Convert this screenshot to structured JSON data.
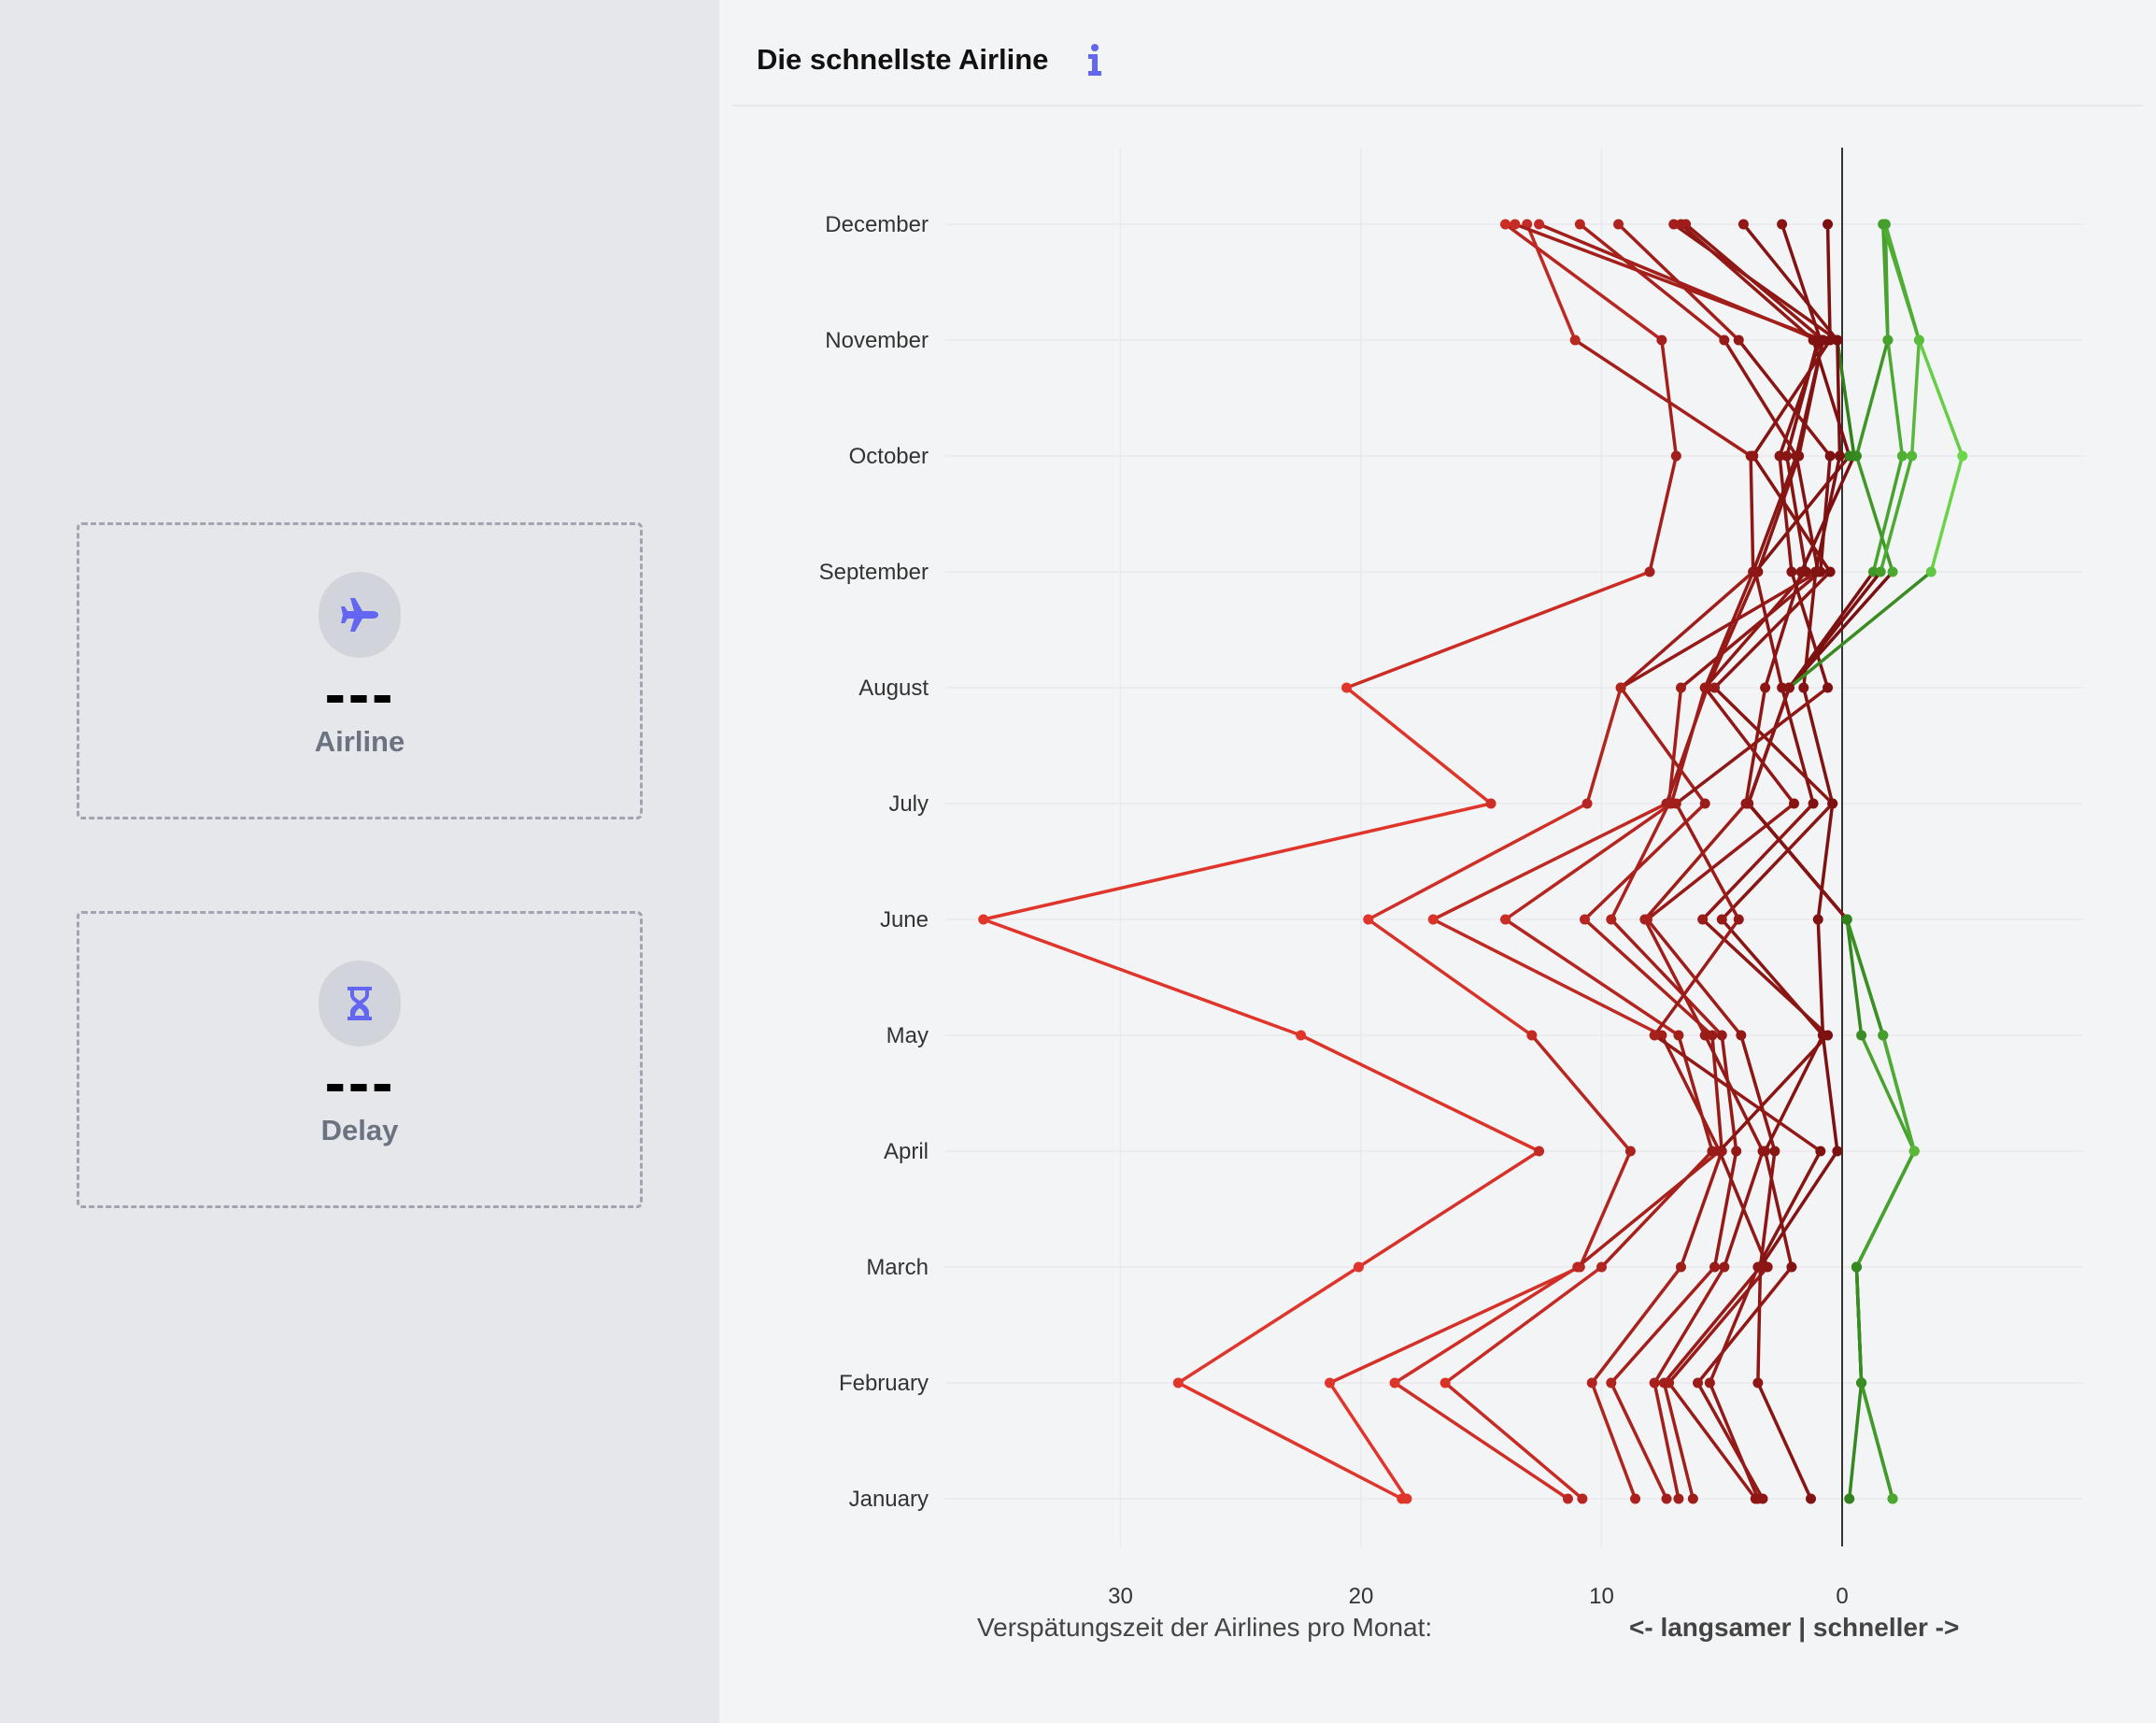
{
  "sidebar": {
    "airline_card": {
      "icon": "airplane-icon",
      "value": "---",
      "label": "Airline"
    },
    "delay_card": {
      "icon": "hourglass-icon",
      "value": "---",
      "label": "Delay"
    }
  },
  "panel": {
    "title": "Die schnellste Airline",
    "info_icon": "info-icon"
  },
  "colors": {
    "accent": "#6366f1",
    "slow_light": "#e0352b",
    "slow_dark": "#7a1010",
    "fast_dark": "#2e7d1a",
    "fast_light": "#6cd64a"
  },
  "chart_data": {
    "type": "line",
    "orientation": "horizontal",
    "x_reversed": true,
    "xlim": [
      36.5,
      -10
    ],
    "x_ticks": [
      30,
      20,
      10,
      0
    ],
    "x_tick_labels": [
      "30",
      "20",
      "10",
      "0"
    ],
    "categories": [
      "January",
      "February",
      "March",
      "April",
      "May",
      "June",
      "July",
      "August",
      "September",
      "October",
      "November",
      "December"
    ],
    "xlabel": "Verspätungszeit der Airlines pro Monat:",
    "xlabel_direction": "<- langsamer | schneller ->",
    "reference_line": 0,
    "grid": true,
    "legend": "none",
    "series": [
      {
        "values": [
          18.3,
          27.6,
          20.1,
          12.6,
          22.5,
          35.7,
          14.6,
          20.6,
          8.0,
          6.9,
          7.5,
          14.0
        ]
      },
      {
        "values": [
          18.1,
          21.3,
          10.9,
          8.8,
          12.9,
          19.7,
          10.6,
          9.2,
          3.7,
          3.8,
          11.1,
          13.1
        ]
      },
      {
        "values": [
          11.4,
          18.6,
          11.0,
          5.1,
          7.5,
          17.0,
          7.3,
          5.6,
          3.5,
          1.8,
          0.8,
          13.6
        ]
      },
      {
        "values": [
          10.8,
          16.5,
          10.0,
          5.4,
          6.8,
          14.0,
          7.1,
          5.7,
          1.5,
          2.3,
          1.0,
          12.6
        ]
      },
      {
        "values": [
          8.6,
          10.4,
          6.7,
          5.0,
          5.4,
          10.7,
          5.7,
          9.2,
          1.0,
          1.9,
          4.9,
          10.9
        ]
      },
      {
        "values": [
          7.3,
          9.6,
          5.3,
          4.4,
          5.0,
          9.6,
          7.2,
          6.7,
          0.9,
          0.5,
          4.3,
          9.3
        ]
      },
      {
        "values": [
          6.8,
          7.8,
          4.9,
          3.3,
          5.7,
          8.2,
          4.0,
          3.2,
          1.7,
          -0.5,
          0.2,
          7.0
        ]
      },
      {
        "values": [
          6.2,
          7.4,
          3.4,
          2.8,
          4.2,
          8.1,
          2.0,
          5.7,
          3.7,
          1.9,
          0.8,
          6.5
        ]
      },
      {
        "values": [
          3.6,
          7.2,
          3.1,
          5.1,
          0.6,
          5.8,
          1.2,
          2.5,
          3.6,
          -0.3,
          1.2,
          6.7
        ]
      },
      {
        "values": [
          3.3,
          6.0,
          2.1,
          3.2,
          0.8,
          5.0,
          0.4,
          1.6,
          1.1,
          0.1,
          0.2,
          4.1
        ]
      },
      {
        "values": [
          3.5,
          5.5,
          3.5,
          0.9,
          7.8,
          4.3,
          6.9,
          0.6,
          2.1,
          2.6,
          0.9,
          2.5
        ]
      },
      {
        "values": [
          1.3,
          3.5,
          3.4,
          0.2,
          0.8,
          1.0,
          0.4,
          5.3,
          0.5,
          3.7,
          0.5,
          0.6
        ]
      },
      {
        "values": [
          -0.3,
          -0.8,
          -0.6,
          -3.0,
          -0.8,
          -0.2,
          3.9,
          2.2,
          -1.3,
          -2.5,
          -1.9,
          -1.7
        ]
      },
      {
        "values": [
          -2.1,
          -0.8,
          -0.6,
          -3.0,
          -1.7,
          -0.2,
          3.9,
          2.2,
          -2.1,
          -0.6,
          -1.9,
          -1.8
        ]
      },
      {
        "values": [
          -2.1,
          -0.8,
          -0.6,
          -3.0,
          -1.7,
          -0.2,
          3.9,
          2.2,
          -1.6,
          -2.9,
          -3.2,
          -1.8
        ]
      },
      {
        "values": [
          -2.1,
          -0.8,
          -0.6,
          -3.0,
          -1.7,
          -0.2,
          3.9,
          2.2,
          -3.7,
          -5.0,
          -3.2,
          -1.7
        ]
      }
    ]
  }
}
